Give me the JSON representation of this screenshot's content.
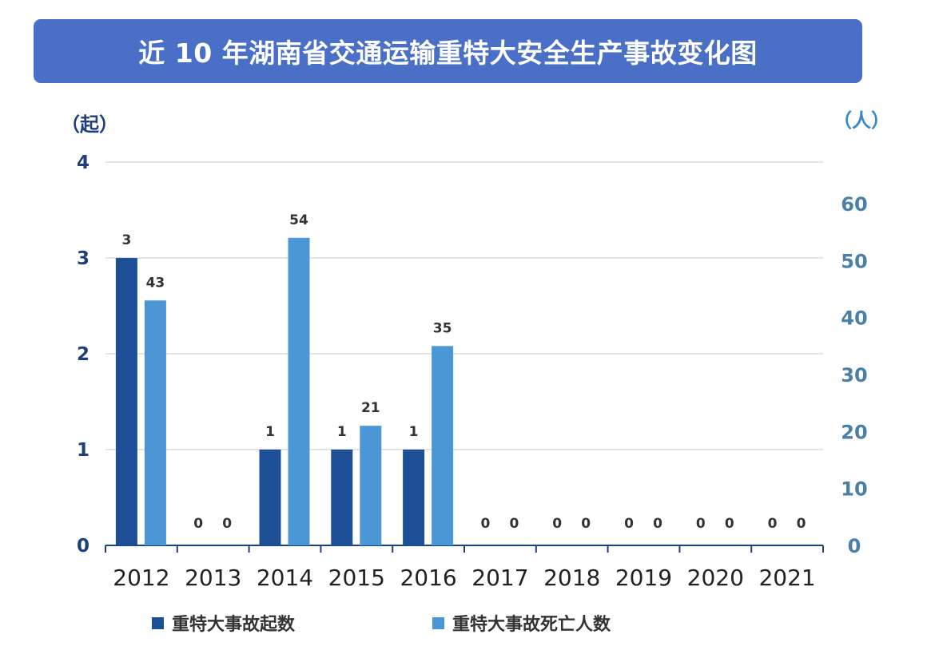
{
  "title": "近 10 年湖南省交通运输重特大安全生产事故变化图",
  "left_unit": "（起）",
  "right_unit": "（人）",
  "colors": {
    "banner": "#4a6fc6",
    "series_count": "#1d4f96",
    "series_deaths": "#4b97d6",
    "grid": "#dcdcdc"
  },
  "chart_data": {
    "type": "bar",
    "categories": [
      "2012",
      "2013",
      "2014",
      "2015",
      "2016",
      "2017",
      "2018",
      "2019",
      "2020",
      "2021"
    ],
    "series": [
      {
        "name": "重特大事故起数",
        "axis": "left",
        "values": [
          3,
          0,
          1,
          1,
          1,
          0,
          0,
          0,
          0,
          0
        ]
      },
      {
        "name": "重特大事故死亡人数",
        "axis": "right",
        "values": [
          43,
          0,
          54,
          21,
          35,
          0,
          0,
          0,
          0,
          0
        ]
      }
    ],
    "y_left": {
      "ticks": [
        "0",
        "1",
        "2",
        "3",
        "4"
      ],
      "range": [
        0,
        4
      ]
    },
    "y_right": {
      "ticks": [
        "0",
        "10",
        "20",
        "30",
        "40",
        "50",
        "60"
      ],
      "range": [
        0,
        68
      ]
    },
    "grid": true,
    "legend_position": "bottom"
  }
}
